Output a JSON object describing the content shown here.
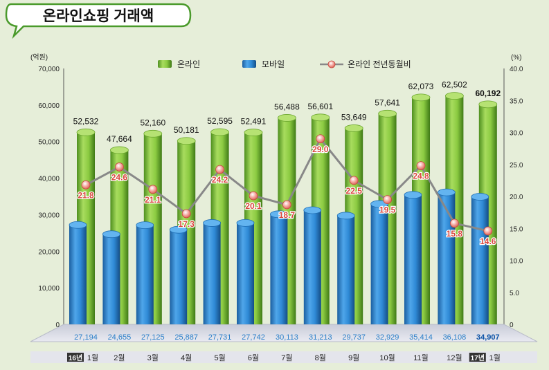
{
  "chart_data": {
    "type": "bar",
    "title": "온라인쇼핑 거래액",
    "y_left_unit": "(억원)",
    "y_right_unit": "(%)",
    "y_left_ticks": [
      "0",
      "10,000",
      "20,000",
      "30,000",
      "40,000",
      "50,000",
      "60,000",
      "70,000"
    ],
    "y_right_ticks": [
      "0",
      "5.0",
      "10.0",
      "15.0",
      "20.0",
      "25.0",
      "30.0",
      "35.0",
      "40.0"
    ],
    "ylim_left": [
      0,
      70000
    ],
    "ylim_right": [
      0,
      40
    ],
    "categories": [
      {
        "year": "16년",
        "month": "1월"
      },
      {
        "year": "",
        "month": "2월"
      },
      {
        "year": "",
        "month": "3월"
      },
      {
        "year": "",
        "month": "4월"
      },
      {
        "year": "",
        "month": "5월"
      },
      {
        "year": "",
        "month": "6월"
      },
      {
        "year": "",
        "month": "7월"
      },
      {
        "year": "",
        "month": "8월"
      },
      {
        "year": "",
        "month": "9월"
      },
      {
        "year": "",
        "month": "10월"
      },
      {
        "year": "",
        "month": "11월"
      },
      {
        "year": "",
        "month": "12월"
      },
      {
        "year": "17년",
        "month": "1월"
      }
    ],
    "series": [
      {
        "name": "온라인",
        "kind": "bar",
        "color": "#7fbf3a",
        "values": [
          52532,
          47664,
          52160,
          50181,
          52595,
          52491,
          56488,
          56601,
          53649,
          57641,
          62073,
          62502,
          60192
        ],
        "labels": [
          "52,532",
          "47,664",
          "52,160",
          "50,181",
          "52,595",
          "52,491",
          "56,488",
          "56,601",
          "53,649",
          "57,641",
          "62,073",
          "62,502",
          "60,192"
        ]
      },
      {
        "name": "모바일",
        "kind": "bar",
        "color": "#2b86cf",
        "values": [
          27194,
          24655,
          27125,
          25887,
          27731,
          27742,
          30113,
          31213,
          29737,
          32929,
          35414,
          36108,
          34907
        ],
        "labels": [
          "27,194",
          "24,655",
          "27,125",
          "25,887",
          "27,731",
          "27,742",
          "30,113",
          "31,213",
          "29,737",
          "32,929",
          "35,414",
          "36,108",
          "34,907"
        ]
      },
      {
        "name": "온라인 전년동월비",
        "kind": "line",
        "color": "#888888",
        "axis": "right",
        "values": [
          21.8,
          24.6,
          21.1,
          17.3,
          24.2,
          20.1,
          18.7,
          29.0,
          22.5,
          19.5,
          24.8,
          15.8,
          14.6
        ],
        "labels": [
          "21.8",
          "24.6",
          "21.1",
          "17.3",
          "24.2",
          "20.1",
          "18.7",
          "29.0",
          "22.5",
          "19.5",
          "24.8",
          "15.8",
          "14.6"
        ]
      }
    ],
    "grid": false,
    "legend": "top"
  }
}
